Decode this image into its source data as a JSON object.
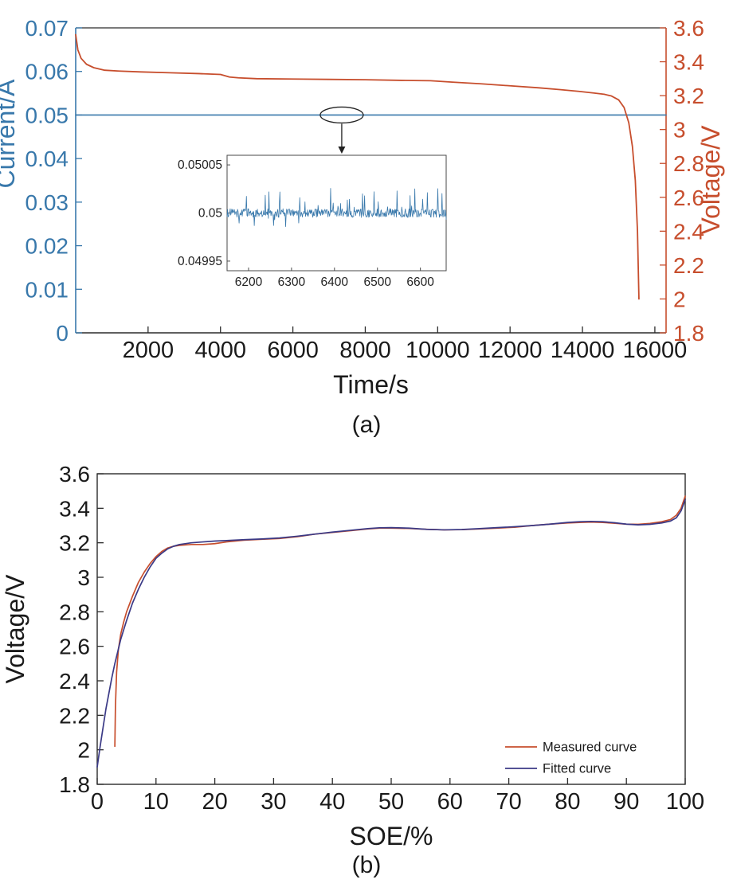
{
  "figure": {
    "panel_a_label": "(a)",
    "panel_b_label": "(b)",
    "background": "#ffffff"
  },
  "chart_data": [
    {
      "id": "chart-a",
      "type": "line",
      "title": "",
      "xlabel": "Time/s",
      "xlim": [
        0,
        16310
      ],
      "x_ticks": [
        2000,
        4000,
        6000,
        8000,
        10000,
        12000,
        14000,
        16000
      ],
      "x_tick_labels": [
        "2000",
        "4000",
        "6000",
        "8000",
        "10000",
        "12000",
        "14000",
        "16000"
      ],
      "left_axis": {
        "label": "Current/A",
        "color": "#3878ab",
        "lim": [
          0,
          0.07
        ],
        "ticks": [
          0,
          0.01,
          0.02,
          0.03,
          0.04,
          0.05,
          0.06,
          0.07
        ],
        "tick_labels": [
          "0",
          "0.01",
          "0.02",
          "0.03",
          "0.04",
          "0.05",
          "0.06",
          "0.07"
        ]
      },
      "right_axis": {
        "label": "Voltage/V",
        "color": "#c74e2d",
        "lim": [
          1.8,
          3.6
        ],
        "ticks": [
          1.8,
          2,
          2.2,
          2.4,
          2.6,
          2.8,
          3,
          3.2,
          3.4,
          3.6
        ],
        "tick_labels": [
          "1.8",
          "2",
          "2.2",
          "2.4",
          "2.6",
          "2.8",
          "3",
          "3.2",
          "3.4",
          "3.6"
        ]
      },
      "series": [
        {
          "name": "current",
          "axis": "left",
          "color": "#3878ab",
          "width": 1.6,
          "x": [
            0,
            16310
          ],
          "y": [
            0.05,
            0.05
          ]
        },
        {
          "name": "voltage",
          "axis": "right",
          "color": "#c74e2d",
          "width": 1.8,
          "x": [
            0,
            60,
            150,
            300,
            500,
            800,
            1200,
            1800,
            2600,
            3400,
            4000,
            4250,
            4500,
            5000,
            6000,
            7000,
            8000,
            9000,
            9800,
            10400,
            11200,
            12000,
            12800,
            13400,
            13900,
            14300,
            14600,
            14800,
            15000,
            15150,
            15280,
            15380,
            15460,
            15520,
            15560
          ],
          "y": [
            3.56,
            3.47,
            3.42,
            3.385,
            3.365,
            3.35,
            3.345,
            3.34,
            3.335,
            3.33,
            3.325,
            3.31,
            3.305,
            3.3,
            3.298,
            3.296,
            3.294,
            3.29,
            3.288,
            3.28,
            3.27,
            3.258,
            3.246,
            3.235,
            3.225,
            3.216,
            3.208,
            3.198,
            3.175,
            3.13,
            3.04,
            2.9,
            2.7,
            2.4,
            2.0
          ]
        }
      ],
      "inset": {
        "xlim": [
          6150,
          6660
        ],
        "x_ticks": [
          6200,
          6300,
          6400,
          6500,
          6600
        ],
        "x_tick_labels": [
          "6200",
          "6300",
          "6400",
          "6500",
          "6600"
        ],
        "ylim": [
          0.04994,
          0.05006
        ],
        "y_ticks": [
          0.04995,
          0.05,
          0.05005
        ],
        "y_tick_labels": [
          "0.04995",
          "0.05",
          "0.05005"
        ],
        "base_value": 0.05,
        "noise_band": 9e-06,
        "spike_height": 2.6e-05,
        "points": 420,
        "seed": 1234,
        "color": "#3878ab"
      },
      "annotation": {
        "type": "ellipse-arrow",
        "x_value": 7350,
        "y_value": 0.05,
        "axis": "left"
      }
    },
    {
      "id": "chart-b",
      "type": "line",
      "title": "",
      "xlabel": "SOE/%",
      "ylabel": "Voltage/V",
      "xlim": [
        0,
        100
      ],
      "x_ticks": [
        0,
        10,
        20,
        30,
        40,
        50,
        60,
        70,
        80,
        90,
        100
      ],
      "x_tick_labels": [
        "0",
        "10",
        "20",
        "30",
        "40",
        "50",
        "60",
        "70",
        "80",
        "90",
        "100"
      ],
      "ylim": [
        1.8,
        3.6
      ],
      "y_ticks": [
        1.8,
        2,
        2.2,
        2.4,
        2.6,
        2.8,
        3,
        3.2,
        3.4,
        3.6
      ],
      "y_tick_labels": [
        "1.8",
        "2",
        "2.2",
        "2.4",
        "2.6",
        "2.8",
        "3",
        "3.2",
        "3.4",
        "3.6"
      ],
      "legend": {
        "position": "bottom-right"
      },
      "series": [
        {
          "name": "Measured curve",
          "color": "#c74e2d",
          "width": 1.7,
          "x": [
            3,
            3.1,
            3.3,
            3.6,
            4,
            4.5,
            5,
            6,
            7,
            8,
            9,
            10,
            11,
            12,
            13,
            14,
            16,
            18,
            20,
            22,
            25,
            28,
            31,
            34,
            37,
            40,
            43,
            46,
            48,
            50,
            53,
            56,
            59,
            62,
            65,
            68,
            71,
            74,
            77,
            80,
            82,
            84,
            86,
            88,
            90,
            92,
            94,
            96,
            97.5,
            98.5,
            99.3,
            100
          ],
          "y": [
            2.02,
            2.25,
            2.45,
            2.58,
            2.67,
            2.74,
            2.8,
            2.89,
            2.97,
            3.03,
            3.08,
            3.12,
            3.15,
            3.17,
            3.18,
            3.185,
            3.19,
            3.19,
            3.195,
            3.205,
            3.215,
            3.22,
            3.225,
            3.235,
            3.25,
            3.26,
            3.27,
            3.28,
            3.285,
            3.285,
            3.283,
            3.278,
            3.275,
            3.276,
            3.28,
            3.285,
            3.29,
            3.3,
            3.308,
            3.315,
            3.318,
            3.32,
            3.318,
            3.313,
            3.308,
            3.307,
            3.312,
            3.322,
            3.335,
            3.36,
            3.4,
            3.47
          ]
        },
        {
          "name": "Fitted curve",
          "color": "#3b3a86",
          "width": 1.7,
          "x": [
            0,
            0.5,
            1,
            1.5,
            2,
            2.5,
            3,
            3.5,
            4,
            5,
            6,
            7,
            8,
            9,
            10,
            11,
            12,
            13,
            14,
            16,
            18,
            20,
            22,
            25,
            28,
            31,
            34,
            37,
            40,
            43,
            46,
            48,
            50,
            53,
            56,
            59,
            62,
            65,
            68,
            71,
            74,
            77,
            80,
            82,
            84,
            86,
            88,
            90,
            92,
            94,
            96,
            97.5,
            98.5,
            99.3,
            100
          ],
          "y": [
            1.9,
            2.02,
            2.13,
            2.24,
            2.33,
            2.42,
            2.5,
            2.57,
            2.64,
            2.75,
            2.85,
            2.93,
            3.0,
            3.06,
            3.11,
            3.14,
            3.165,
            3.18,
            3.19,
            3.2,
            3.205,
            3.21,
            3.213,
            3.218,
            3.222,
            3.228,
            3.238,
            3.25,
            3.262,
            3.272,
            3.282,
            3.287,
            3.288,
            3.285,
            3.278,
            3.275,
            3.277,
            3.282,
            3.288,
            3.293,
            3.3,
            3.308,
            3.318,
            3.322,
            3.324,
            3.322,
            3.316,
            3.308,
            3.304,
            3.307,
            3.315,
            3.326,
            3.345,
            3.385,
            3.45
          ]
        }
      ]
    }
  ]
}
